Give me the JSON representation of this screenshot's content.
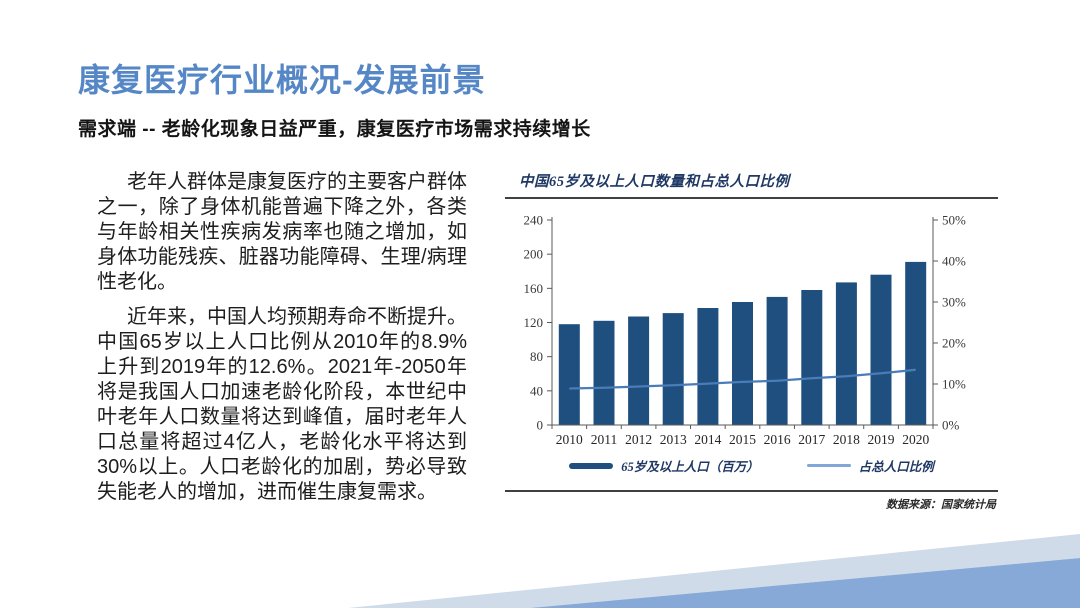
{
  "slide": {
    "title": "康复医疗行业概况-发展前景",
    "subtitle": "需求端 -- 老龄化现象日益严重，康复医疗市场需求持续增长",
    "paragraphs": {
      "p1": "老年人群体是康复医疗的主要客户群体之一，除了身体机能普遍下降之外，各类与年龄相关性疾病发病率也随之增加，如身体功能残疾、脏器功能障碍、生理/病理性老化。",
      "p2": "近年来，中国人均预期寿命不断提升。中国65岁以上人口比例从2010年的8.9%上升到2019年的12.6%。2021年-2050年将是我国人口加速老龄化阶段，本世纪中叶老年人口数量将达到峰值，届时老年人口总量将超过4亿人，老龄化水平将达到30%以上。人口老龄化的加剧，势必导致失能老人的增加，进而催生康复需求。"
    }
  },
  "chart_data": {
    "type": "bar",
    "combo": "bar+line, dual axis",
    "title": "中国65岁及以上人口数量和占总人口比例",
    "source": "数据来源：国家统计局",
    "categories": [
      "2010",
      "2011",
      "2012",
      "2013",
      "2014",
      "2015",
      "2016",
      "2017",
      "2018",
      "2019",
      "2020"
    ],
    "series": [
      {
        "name": "65岁及以上人口（百万）",
        "type": "bar",
        "axis": "left",
        "values": [
          118,
          122,
          127,
          131,
          137,
          144,
          150,
          158,
          167,
          176,
          191
        ]
      },
      {
        "name": "占总人口比例",
        "type": "line",
        "axis": "right",
        "values": [
          8.9,
          9.1,
          9.4,
          9.7,
          10.1,
          10.5,
          10.8,
          11.4,
          11.9,
          12.6,
          13.5
        ]
      }
    ],
    "left_axis": {
      "min": 0,
      "max": 240,
      "step": 40,
      "ticks": [
        "0",
        "40",
        "80",
        "120",
        "160",
        "200",
        "240"
      ]
    },
    "right_axis": {
      "min": 0,
      "max": 50,
      "step": 10,
      "ticks": [
        "0%",
        "10%",
        "20%",
        "30%",
        "40%",
        "50%"
      ]
    },
    "grid": false,
    "legend_position": "bottom"
  },
  "colors": {
    "title_blue": "#5587c6",
    "body_text": "#1d1d1d",
    "chart_text_navy": "#1f3864",
    "bar_fill": "#1e4f7e",
    "line_stroke": "#4a7cb8",
    "legend_line": "#7fa8d8",
    "axis_gray": "#595959",
    "rule_dark": "#404040",
    "deco_light_band": "#cfdbe9",
    "deco_blue_band": "#87a9d8"
  }
}
